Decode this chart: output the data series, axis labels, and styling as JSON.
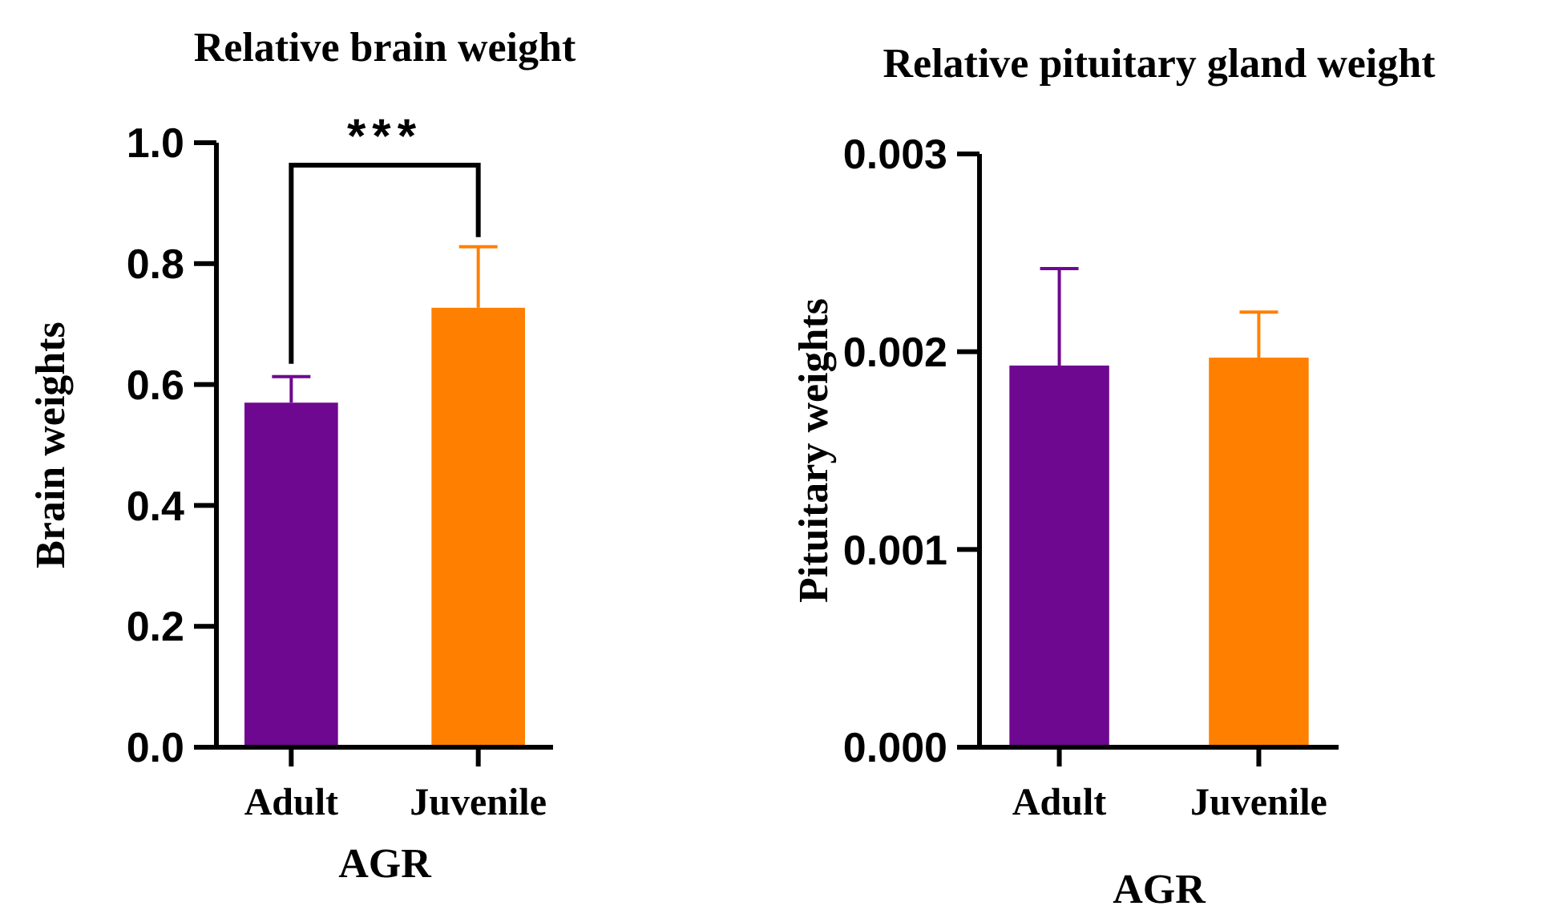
{
  "chart_data": [
    {
      "type": "bar",
      "title": "Relative brain weight",
      "xlabel": "AGR",
      "ylabel": "Brain weights",
      "categories": [
        "Adult",
        "Juvenile"
      ],
      "values": [
        0.57,
        0.727
      ],
      "colors": [
        "#6f0890",
        "#ff8000"
      ],
      "errors": [
        [
          0.57,
          0.613
        ],
        [
          0.727,
          0.828
        ]
      ],
      "ylim": [
        0,
        1
      ],
      "yticks": [
        {
          "value": 0,
          "label": "0.0"
        },
        {
          "value": 0.2,
          "label": "0.2"
        },
        {
          "value": 0.4,
          "label": "0.4"
        },
        {
          "value": 0.6,
          "label": "0.6"
        },
        {
          "value": 0.8,
          "label": "0.8"
        },
        {
          "value": 1,
          "label": "1.0"
        }
      ],
      "annotations": [
        "***"
      ]
    },
    {
      "type": "bar",
      "title": "Relative pituitary gland weight",
      "xlabel": "AGR",
      "ylabel": "Pituitary weights",
      "categories": [
        "Adult",
        "Juvenile"
      ],
      "values": [
        0.00193,
        0.00197
      ],
      "colors": [
        "#6f0890",
        "#ff8000"
      ],
      "errors": [
        [
          0.00193,
          0.00242
        ],
        [
          0.00197,
          0.0022
        ]
      ],
      "ylim": [
        0,
        0.003
      ],
      "yticks": [
        {
          "value": 0,
          "label": "0.000"
        },
        {
          "value": 0.001,
          "label": "0.001"
        },
        {
          "value": 0.002,
          "label": "0.002"
        },
        {
          "value": 0.003,
          "label": "0.003"
        }
      ]
    }
  ]
}
